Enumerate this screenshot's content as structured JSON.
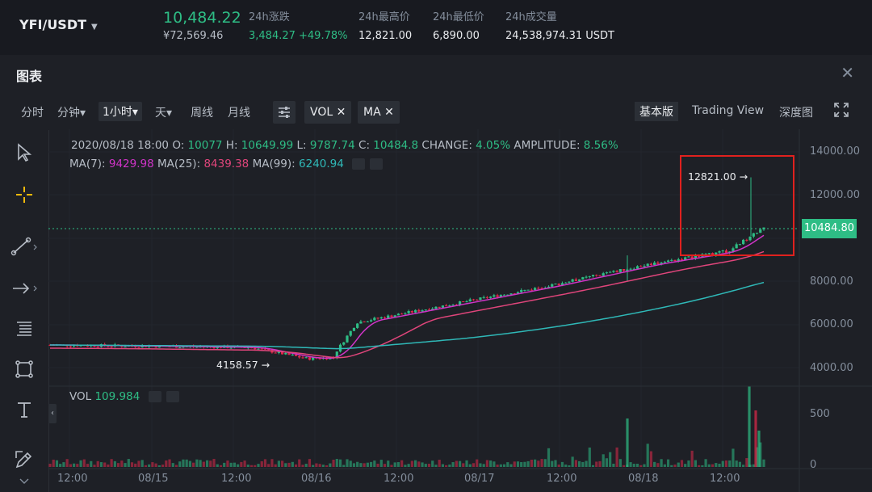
{
  "header": {
    "pair": "YFI/USDT",
    "last_price": "10,484.22",
    "fiat_price": "¥72,569.46",
    "stats": [
      {
        "label": "24h涨跌",
        "value": "3,484.27 +49.78%",
        "positive": true
      },
      {
        "label": "24h最高价",
        "value": "12,821.00"
      },
      {
        "label": "24h最低价",
        "value": "6,890.00"
      },
      {
        "label": "24h成交量",
        "value": "24,538,974.31 USDT"
      }
    ]
  },
  "panel": {
    "title": "图表",
    "close_icon": "close-icon"
  },
  "toolbar": {
    "intervals": [
      "分时",
      "分钟▾",
      "1小时▾",
      "天▾",
      "周线",
      "月线"
    ],
    "selected_interval": "1小时▾",
    "indicators": [
      "VOL",
      "MA"
    ],
    "views": [
      "基本版",
      "Trading View",
      "深度图"
    ],
    "selected_view": "基本版"
  },
  "sidebar_tools": [
    "cursor-icon",
    "crosshair-icon",
    "trendline-icon",
    "arrow-icon",
    "fib-icon",
    "rectangle-icon",
    "text-icon",
    "pencil-icon"
  ],
  "overlay": {
    "date": "2020/08/18 18:00",
    "open_label": "O:",
    "open": "10077",
    "high_label": "H:",
    "high": "10649.99",
    "low_label": "L:",
    "low": "9787.74",
    "close_label": "C:",
    "close": "10484.8",
    "change_label": "CHANGE:",
    "change": "4.05%",
    "amplitude_label": "AMPLITUDE:",
    "amplitude": "8.56%",
    "ma7_label": "MA(7):",
    "ma7": "9429.98",
    "ma25_label": "MA(25):",
    "ma25": "8439.38",
    "ma99_label": "MA(99):",
    "ma99": "6240.94",
    "vol_label": "VOL",
    "vol": "109.984"
  },
  "price_axis": [
    "14000.00",
    "12000.00",
    "10484.80",
    "8000.00",
    "6000.00",
    "4000.00"
  ],
  "vol_axis": [
    "500",
    "0"
  ],
  "x_axis": [
    "12:00",
    "08/15",
    "12:00",
    "08/16",
    "12:00",
    "08/17",
    "12:00",
    "08/18",
    "12:00"
  ],
  "annotations": {
    "high": "12821.00",
    "low": "4158.57"
  },
  "colors": {
    "up": "#2ebd85",
    "down": "#e0294a",
    "ma7": "#d034c8",
    "ma25": "#e0457b",
    "ma99": "#2fb8b7",
    "highlight": "#e0211e"
  }
}
